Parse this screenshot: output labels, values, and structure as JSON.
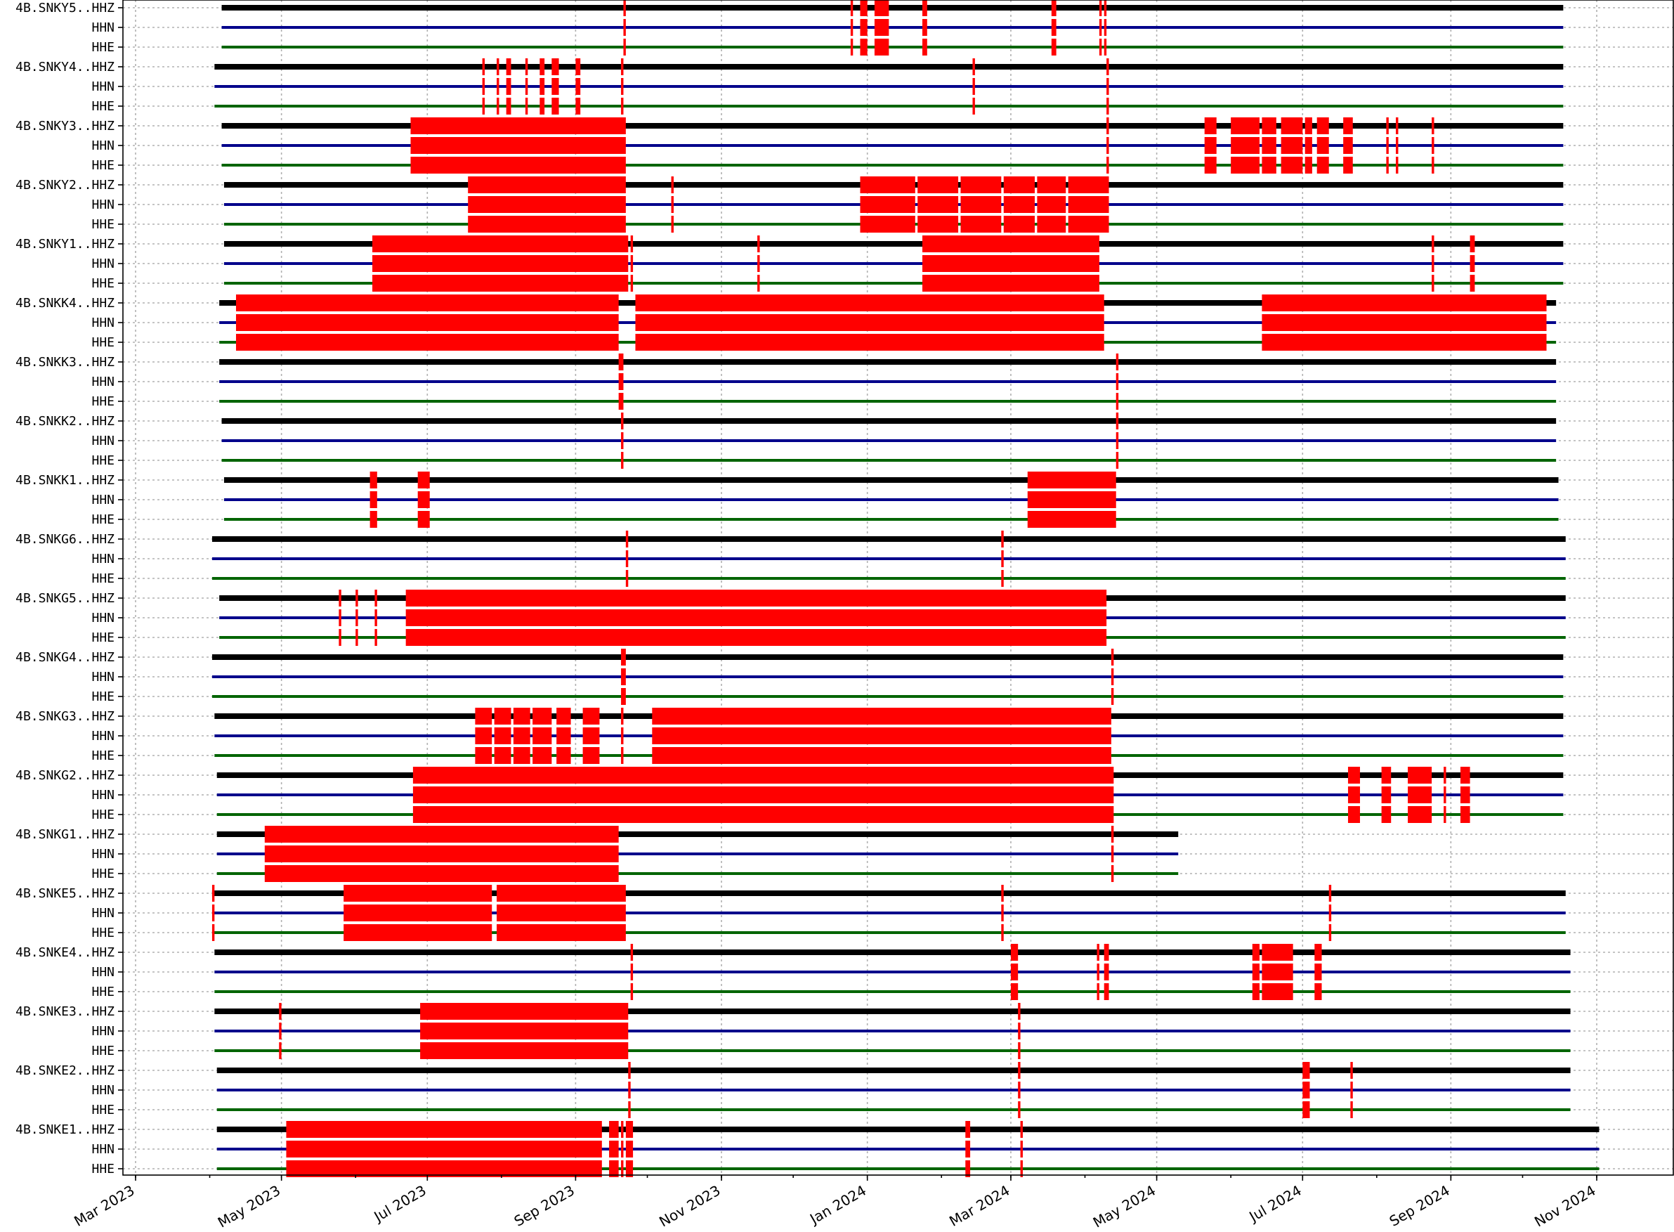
{
  "chart_data": {
    "type": "timeline",
    "x_axis": {
      "type": "date",
      "range": [
        "2023-02-15",
        "2024-11-15"
      ],
      "major_ticks": [
        {
          "date": "2023-03-01",
          "label": "Mar 2023"
        },
        {
          "date": "2023-05-01",
          "label": "May 2023"
        },
        {
          "date": "2023-07-01",
          "label": "Jul 2023"
        },
        {
          "date": "2023-09-01",
          "label": "Sep 2023"
        },
        {
          "date": "2023-11-01",
          "label": "Nov 2023"
        },
        {
          "date": "2024-01-01",
          "label": "Jan 2024"
        },
        {
          "date": "2024-03-01",
          "label": "Mar 2024"
        },
        {
          "date": "2024-05-01",
          "label": "May 2024"
        },
        {
          "date": "2024-07-01",
          "label": "Jul 2024"
        },
        {
          "date": "2024-09-01",
          "label": "Sep 2024"
        },
        {
          "date": "2024-11-01",
          "label": "Nov 2024"
        }
      ]
    },
    "grid": true,
    "channel_colors": {
      "HHZ": "#000000",
      "HHN": "#00008b",
      "HHE": "#006400"
    },
    "gap_color": "#ff0000",
    "stations": [
      {
        "name": "4B.SNKY5",
        "start": "2023-04-06",
        "end": "2024-10-18",
        "gaps": [
          [
            "2023-09-21",
            "2023-09-22"
          ],
          [
            "2023-12-25",
            "2023-12-26"
          ],
          [
            "2023-12-29",
            "2024-01-01"
          ],
          [
            "2024-01-04",
            "2024-01-10"
          ],
          [
            "2024-01-24",
            "2024-01-26"
          ],
          [
            "2024-03-18",
            "2024-03-20"
          ],
          [
            "2024-04-07",
            "2024-04-08"
          ],
          [
            "2024-04-09",
            "2024-04-10"
          ]
        ]
      },
      {
        "name": "4B.SNKY4",
        "start": "2023-04-03",
        "end": "2024-10-18",
        "gaps": [
          [
            "2023-07-24",
            "2023-07-25"
          ],
          [
            "2023-07-30",
            "2023-07-31"
          ],
          [
            "2023-08-03",
            "2023-08-05"
          ],
          [
            "2023-08-11",
            "2023-08-12"
          ],
          [
            "2023-08-17",
            "2023-08-19"
          ],
          [
            "2023-08-22",
            "2023-08-25"
          ],
          [
            "2023-09-01",
            "2023-09-03"
          ],
          [
            "2023-09-20",
            "2023-09-21"
          ],
          [
            "2024-02-14",
            "2024-02-15"
          ],
          [
            "2024-04-10",
            "2024-04-11"
          ]
        ]
      },
      {
        "name": "4B.SNKY3",
        "start": "2023-04-06",
        "end": "2024-10-18",
        "gaps": [
          [
            "2023-06-24",
            "2023-09-22"
          ],
          [
            "2024-04-10",
            "2024-04-11"
          ],
          [
            "2024-05-21",
            "2024-05-26"
          ],
          [
            "2024-06-01",
            "2024-06-13"
          ],
          [
            "2024-06-14",
            "2024-06-20"
          ],
          [
            "2024-06-22",
            "2024-07-01"
          ],
          [
            "2024-07-02",
            "2024-07-05"
          ],
          [
            "2024-07-07",
            "2024-07-12"
          ],
          [
            "2024-07-18",
            "2024-07-22"
          ],
          [
            "2024-08-05",
            "2024-08-06"
          ],
          [
            "2024-08-09",
            "2024-08-10"
          ],
          [
            "2024-08-24",
            "2024-08-25"
          ]
        ]
      },
      {
        "name": "4B.SNKY2",
        "start": "2023-04-07",
        "end": "2024-10-18",
        "gaps": [
          [
            "2023-07-18",
            "2023-09-22"
          ],
          [
            "2023-10-11",
            "2023-10-12"
          ],
          [
            "2023-12-29",
            "2024-01-21"
          ],
          [
            "2024-01-22",
            "2024-02-08"
          ],
          [
            "2024-02-09",
            "2024-02-26"
          ],
          [
            "2024-02-27",
            "2024-03-11"
          ],
          [
            "2024-03-12",
            "2024-03-24"
          ],
          [
            "2024-03-25",
            "2024-04-11"
          ]
        ]
      },
      {
        "name": "4B.SNKY1",
        "start": "2023-04-07",
        "end": "2024-10-18",
        "gaps": [
          [
            "2023-06-08",
            "2023-09-23"
          ],
          [
            "2023-09-24",
            "2023-09-25"
          ],
          [
            "2023-11-16",
            "2023-11-17"
          ],
          [
            "2024-01-24",
            "2024-04-07"
          ],
          [
            "2024-08-24",
            "2024-08-25"
          ],
          [
            "2024-09-09",
            "2024-09-11"
          ]
        ]
      },
      {
        "name": "4B.SNKK4",
        "start": "2023-04-05",
        "end": "2024-10-15",
        "gaps": [
          [
            "2023-04-12",
            "2023-09-19"
          ],
          [
            "2023-09-26",
            "2024-04-09"
          ],
          [
            "2024-06-14",
            "2024-10-11"
          ]
        ]
      },
      {
        "name": "4B.SNKK3",
        "start": "2023-04-05",
        "end": "2024-10-15",
        "gaps": [
          [
            "2023-09-19",
            "2023-09-21"
          ],
          [
            "2024-04-14",
            "2024-04-15"
          ]
        ]
      },
      {
        "name": "4B.SNKK2",
        "start": "2023-04-06",
        "end": "2024-10-15",
        "gaps": [
          [
            "2023-09-20",
            "2023-09-21"
          ],
          [
            "2024-04-14",
            "2024-04-15"
          ]
        ]
      },
      {
        "name": "4B.SNKK1",
        "start": "2023-04-07",
        "end": "2024-10-16",
        "gaps": [
          [
            "2023-06-07",
            "2023-06-10"
          ],
          [
            "2023-06-27",
            "2023-07-02"
          ],
          [
            "2024-03-08",
            "2024-04-14"
          ]
        ]
      },
      {
        "name": "4B.SNKG6",
        "start": "2023-04-02",
        "end": "2024-10-19",
        "gaps": [
          [
            "2023-09-22",
            "2023-09-23"
          ],
          [
            "2024-02-26",
            "2024-02-27"
          ]
        ]
      },
      {
        "name": "4B.SNKG5",
        "start": "2023-04-05",
        "end": "2024-10-19",
        "gaps": [
          [
            "2023-05-25",
            "2023-05-26"
          ],
          [
            "2023-06-01",
            "2023-06-02"
          ],
          [
            "2023-06-09",
            "2023-06-10"
          ],
          [
            "2023-06-22",
            "2024-04-10"
          ]
        ]
      },
      {
        "name": "4B.SNKG4",
        "start": "2023-04-02",
        "end": "2024-10-18",
        "gaps": [
          [
            "2023-09-20",
            "2023-09-22"
          ],
          [
            "2024-04-12",
            "2024-04-13"
          ]
        ]
      },
      {
        "name": "4B.SNKG3",
        "start": "2023-04-03",
        "end": "2024-10-18",
        "gaps": [
          [
            "2023-07-21",
            "2023-07-28"
          ],
          [
            "2023-07-29",
            "2023-08-05"
          ],
          [
            "2023-08-06",
            "2023-08-13"
          ],
          [
            "2023-08-14",
            "2023-08-22"
          ],
          [
            "2023-08-24",
            "2023-08-30"
          ],
          [
            "2023-09-04",
            "2023-09-11"
          ],
          [
            "2023-09-20",
            "2023-09-21"
          ],
          [
            "2023-10-03",
            "2024-04-12"
          ]
        ]
      },
      {
        "name": "4B.SNKG2",
        "start": "2023-04-04",
        "end": "2024-10-18",
        "gaps": [
          [
            "2023-06-25",
            "2024-04-13"
          ],
          [
            "2024-07-20",
            "2024-07-25"
          ],
          [
            "2024-08-03",
            "2024-08-07"
          ],
          [
            "2024-08-14",
            "2024-08-24"
          ],
          [
            "2024-08-29",
            "2024-08-30"
          ],
          [
            "2024-09-05",
            "2024-09-09"
          ]
        ]
      },
      {
        "name": "4B.SNKG1",
        "start": "2023-04-04",
        "end": "2024-05-10",
        "gaps": [
          [
            "2023-04-24",
            "2023-09-19"
          ],
          [
            "2024-04-12",
            "2024-04-13"
          ]
        ]
      },
      {
        "name": "4B.SNKE5",
        "start": "2023-04-02",
        "end": "2024-10-19",
        "gaps": [
          [
            "2023-04-02",
            "2023-04-03"
          ],
          [
            "2023-05-27",
            "2023-07-28"
          ],
          [
            "2023-07-30",
            "2023-09-22"
          ],
          [
            "2024-02-26",
            "2024-02-27"
          ],
          [
            "2024-07-12",
            "2024-07-13"
          ]
        ]
      },
      {
        "name": "4B.SNKE4",
        "start": "2023-04-03",
        "end": "2024-10-21",
        "gaps": [
          [
            "2023-09-24",
            "2023-09-25"
          ],
          [
            "2024-03-01",
            "2024-03-04"
          ],
          [
            "2024-04-06",
            "2024-04-07"
          ],
          [
            "2024-04-09",
            "2024-04-11"
          ],
          [
            "2024-06-10",
            "2024-06-13"
          ],
          [
            "2024-06-14",
            "2024-06-27"
          ],
          [
            "2024-07-06",
            "2024-07-09"
          ]
        ]
      },
      {
        "name": "4B.SNKE3",
        "start": "2023-04-03",
        "end": "2024-10-21",
        "gaps": [
          [
            "2023-04-30",
            "2023-05-01"
          ],
          [
            "2023-06-28",
            "2023-09-23"
          ],
          [
            "2024-03-04",
            "2024-03-05"
          ]
        ]
      },
      {
        "name": "4B.SNKE2",
        "start": "2023-04-04",
        "end": "2024-10-21",
        "gaps": [
          [
            "2023-09-23",
            "2023-09-24"
          ],
          [
            "2024-03-04",
            "2024-03-05"
          ],
          [
            "2024-07-01",
            "2024-07-04"
          ],
          [
            "2024-07-21",
            "2024-07-22"
          ]
        ]
      },
      {
        "name": "4B.SNKE1",
        "start": "2023-04-04",
        "end": "2024-11-02",
        "gaps": [
          [
            "2023-05-03",
            "2023-09-12"
          ],
          [
            "2023-09-15",
            "2023-09-19"
          ],
          [
            "2023-09-20",
            "2023-09-21"
          ],
          [
            "2023-09-22",
            "2023-09-25"
          ],
          [
            "2024-02-11",
            "2024-02-13"
          ],
          [
            "2024-03-05",
            "2024-03-06"
          ]
        ]
      }
    ]
  }
}
